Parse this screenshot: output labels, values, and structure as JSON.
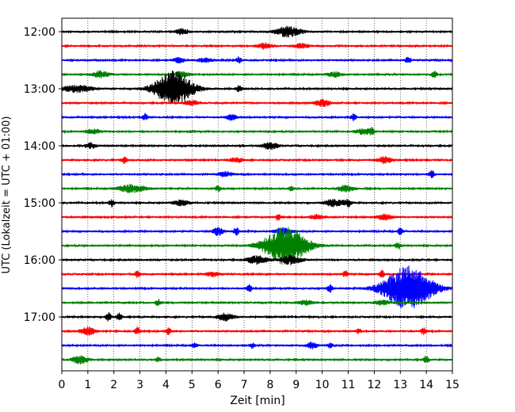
{
  "chart_data": {
    "type": "line",
    "title": "",
    "xlabel": "Zeit  [min]",
    "ylabel": "UTC (Lokalzeit = UTC + 01:00)",
    "xlim": [
      0,
      15
    ],
    "x_ticks": [
      0,
      1,
      2,
      3,
      4,
      5,
      6,
      7,
      8,
      9,
      10,
      11,
      12,
      13,
      14,
      15
    ],
    "y_ticks": [
      {
        "label": "12:00",
        "trace": 0
      },
      {
        "label": "13:00",
        "trace": 4
      },
      {
        "label": "14:00",
        "trace": 8
      },
      {
        "label": "15:00",
        "trace": 12
      },
      {
        "label": "16:00",
        "trace": 16
      },
      {
        "label": "17:00",
        "trace": 20
      }
    ],
    "grid": "x-dotted",
    "series_colors": [
      "#000000",
      "#ff0000",
      "#0000ff",
      "#008000"
    ],
    "trace_minutes_per_row": 15,
    "start_time": "12:00",
    "series": [
      {
        "name": "12:00",
        "color": "#000000",
        "events": [
          {
            "t": 4.6,
            "amp": 0.25,
            "w": 0.25
          },
          {
            "t": 8.7,
            "amp": 0.45,
            "w": 0.5
          }
        ]
      },
      {
        "name": "12:15",
        "color": "#ff0000",
        "events": [
          {
            "t": 7.8,
            "amp": 0.25,
            "w": 0.3
          },
          {
            "t": 9.2,
            "amp": 0.2,
            "w": 0.3
          }
        ]
      },
      {
        "name": "12:30",
        "color": "#0000ff",
        "events": [
          {
            "t": 4.5,
            "amp": 0.25,
            "w": 0.2
          },
          {
            "t": 5.5,
            "amp": 0.2,
            "w": 0.3
          },
          {
            "t": 6.8,
            "amp": 0.3,
            "w": 0.1
          },
          {
            "t": 13.3,
            "amp": 0.3,
            "w": 0.1
          }
        ]
      },
      {
        "name": "12:45",
        "color": "#008000",
        "events": [
          {
            "t": 1.5,
            "amp": 0.3,
            "w": 0.3
          },
          {
            "t": 4.6,
            "amp": 0.25,
            "w": 0.3
          },
          {
            "t": 10.5,
            "amp": 0.2,
            "w": 0.3
          },
          {
            "t": 14.3,
            "amp": 0.35,
            "w": 0.1
          }
        ]
      },
      {
        "name": "13:00",
        "color": "#000000",
        "events": [
          {
            "t": 0.6,
            "amp": 0.3,
            "w": 0.6
          },
          {
            "t": 4.3,
            "amp": 1.6,
            "w": 0.7
          },
          {
            "t": 6.8,
            "amp": 0.3,
            "w": 0.1
          }
        ]
      },
      {
        "name": "13:15",
        "color": "#ff0000",
        "events": [
          {
            "t": 5.0,
            "amp": 0.2,
            "w": 0.3
          },
          {
            "t": 10.0,
            "amp": 0.3,
            "w": 0.3
          }
        ]
      },
      {
        "name": "13:30",
        "color": "#0000ff",
        "events": [
          {
            "t": 3.2,
            "amp": 0.3,
            "w": 0.1
          },
          {
            "t": 6.5,
            "amp": 0.25,
            "w": 0.2
          },
          {
            "t": 11.2,
            "amp": 0.3,
            "w": 0.1
          }
        ]
      },
      {
        "name": "13:45",
        "color": "#008000",
        "events": [
          {
            "t": 1.2,
            "amp": 0.2,
            "w": 0.3
          },
          {
            "t": 11.6,
            "amp": 0.25,
            "w": 0.3
          },
          {
            "t": 11.9,
            "amp": 0.25,
            "w": 0.1
          }
        ]
      },
      {
        "name": "14:00",
        "color": "#000000",
        "events": [
          {
            "t": 1.1,
            "amp": 0.25,
            "w": 0.2
          },
          {
            "t": 8.0,
            "amp": 0.3,
            "w": 0.3
          }
        ]
      },
      {
        "name": "14:15",
        "color": "#ff0000",
        "events": [
          {
            "t": 2.4,
            "amp": 0.3,
            "w": 0.1
          },
          {
            "t": 6.7,
            "amp": 0.2,
            "w": 0.3
          },
          {
            "t": 12.4,
            "amp": 0.3,
            "w": 0.3
          }
        ]
      },
      {
        "name": "14:30",
        "color": "#0000ff",
        "events": [
          {
            "t": 6.3,
            "amp": 0.2,
            "w": 0.3
          },
          {
            "t": 14.2,
            "amp": 0.35,
            "w": 0.1
          }
        ]
      },
      {
        "name": "14:45",
        "color": "#008000",
        "events": [
          {
            "t": 2.7,
            "amp": 0.35,
            "w": 0.5
          },
          {
            "t": 6.0,
            "amp": 0.25,
            "w": 0.1
          },
          {
            "t": 8.8,
            "amp": 0.2,
            "w": 0.1
          },
          {
            "t": 10.9,
            "amp": 0.3,
            "w": 0.3
          }
        ]
      },
      {
        "name": "15:00",
        "color": "#000000",
        "events": [
          {
            "t": 1.9,
            "amp": 0.35,
            "w": 0.1
          },
          {
            "t": 4.6,
            "amp": 0.25,
            "w": 0.3
          },
          {
            "t": 10.5,
            "amp": 0.35,
            "w": 0.4
          },
          {
            "t": 11.0,
            "amp": 0.3,
            "w": 0.1
          }
        ]
      },
      {
        "name": "15:15",
        "color": "#ff0000",
        "events": [
          {
            "t": 8.3,
            "amp": 0.3,
            "w": 0.1
          },
          {
            "t": 9.8,
            "amp": 0.2,
            "w": 0.3
          },
          {
            "t": 12.4,
            "amp": 0.25,
            "w": 0.3
          }
        ]
      },
      {
        "name": "15:30",
        "color": "#0000ff",
        "events": [
          {
            "t": 6.0,
            "amp": 0.35,
            "w": 0.2
          },
          {
            "t": 6.7,
            "amp": 0.35,
            "w": 0.1
          },
          {
            "t": 8.5,
            "amp": 0.35,
            "w": 0.3
          },
          {
            "t": 13.0,
            "amp": 0.3,
            "w": 0.1
          }
        ]
      },
      {
        "name": "15:45",
        "color": "#008000",
        "events": [
          {
            "t": 8.6,
            "amp": 1.7,
            "w": 0.8
          },
          {
            "t": 12.9,
            "amp": 0.35,
            "w": 0.1
          }
        ]
      },
      {
        "name": "16:00",
        "color": "#000000",
        "events": [
          {
            "t": 7.5,
            "amp": 0.35,
            "w": 0.4
          },
          {
            "t": 8.8,
            "amp": 0.4,
            "w": 0.4
          }
        ]
      },
      {
        "name": "16:15",
        "color": "#ff0000",
        "events": [
          {
            "t": 2.9,
            "amp": 0.3,
            "w": 0.1
          },
          {
            "t": 5.8,
            "amp": 0.2,
            "w": 0.3
          },
          {
            "t": 10.9,
            "amp": 0.3,
            "w": 0.1
          },
          {
            "t": 12.3,
            "amp": 0.3,
            "w": 0.1
          }
        ]
      },
      {
        "name": "16:30",
        "color": "#0000ff",
        "events": [
          {
            "t": 7.2,
            "amp": 0.35,
            "w": 0.1
          },
          {
            "t": 10.3,
            "amp": 0.35,
            "w": 0.1
          },
          {
            "t": 13.3,
            "amp": 2.0,
            "w": 0.9
          }
        ]
      },
      {
        "name": "16:45",
        "color": "#008000",
        "events": [
          {
            "t": 3.7,
            "amp": 0.3,
            "w": 0.1
          },
          {
            "t": 9.4,
            "amp": 0.2,
            "w": 0.3
          },
          {
            "t": 12.3,
            "amp": 0.2,
            "w": 0.3
          }
        ]
      },
      {
        "name": "17:00",
        "color": "#000000",
        "events": [
          {
            "t": 1.8,
            "amp": 0.4,
            "w": 0.1
          },
          {
            "t": 2.2,
            "amp": 0.35,
            "w": 0.1
          },
          {
            "t": 6.3,
            "amp": 0.35,
            "w": 0.3
          }
        ]
      },
      {
        "name": "17:15",
        "color": "#ff0000",
        "events": [
          {
            "t": 1.0,
            "amp": 0.35,
            "w": 0.3
          },
          {
            "t": 2.9,
            "amp": 0.35,
            "w": 0.1
          },
          {
            "t": 4.1,
            "amp": 0.3,
            "w": 0.1
          },
          {
            "t": 11.4,
            "amp": 0.2,
            "w": 0.1
          },
          {
            "t": 13.9,
            "amp": 0.3,
            "w": 0.1
          }
        ]
      },
      {
        "name": "17:30",
        "color": "#0000ff",
        "events": [
          {
            "t": 5.1,
            "amp": 0.2,
            "w": 0.1
          },
          {
            "t": 7.3,
            "amp": 0.25,
            "w": 0.1
          },
          {
            "t": 9.6,
            "amp": 0.3,
            "w": 0.2
          },
          {
            "t": 10.3,
            "amp": 0.2,
            "w": 0.1
          }
        ]
      },
      {
        "name": "17:45",
        "color": "#008000",
        "events": [
          {
            "t": 0.7,
            "amp": 0.35,
            "w": 0.3
          },
          {
            "t": 3.7,
            "amp": 0.2,
            "w": 0.1
          },
          {
            "t": 14.0,
            "amp": 0.35,
            "w": 0.1
          }
        ]
      }
    ]
  }
}
